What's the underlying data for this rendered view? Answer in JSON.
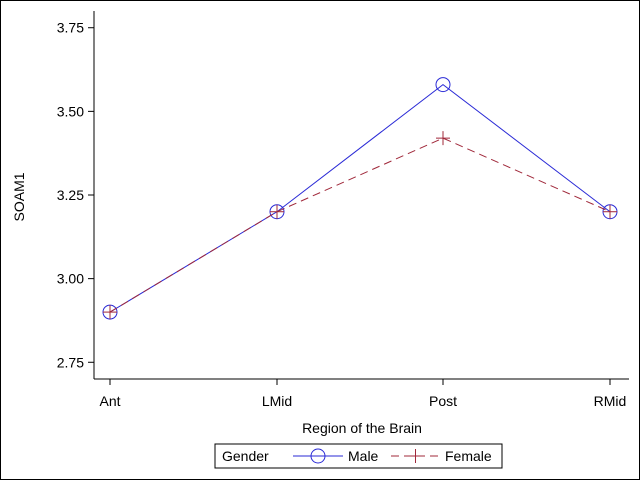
{
  "chart_data": {
    "type": "line",
    "categories": [
      "Ant",
      "LMid",
      "Post",
      "RMid"
    ],
    "xlabel": "Region of the Brain",
    "ylabel": "SOAM1",
    "ylim": [
      2.7,
      3.8
    ],
    "yticks": [
      "2.75",
      "3.00",
      "3.25",
      "3.50",
      "3.75"
    ],
    "grid": false,
    "legend": {
      "title": "Gender",
      "placement": "bottom-center"
    },
    "series": [
      {
        "name": "Male",
        "values": [
          2.9,
          3.2,
          3.58,
          3.2
        ],
        "color": "#2a2ad6",
        "marker": "circle",
        "line": "solid"
      },
      {
        "name": "Female",
        "values": [
          2.9,
          3.2,
          3.42,
          3.2
        ],
        "color": "#a0283a",
        "marker": "plus",
        "line": "dashed"
      }
    ]
  }
}
